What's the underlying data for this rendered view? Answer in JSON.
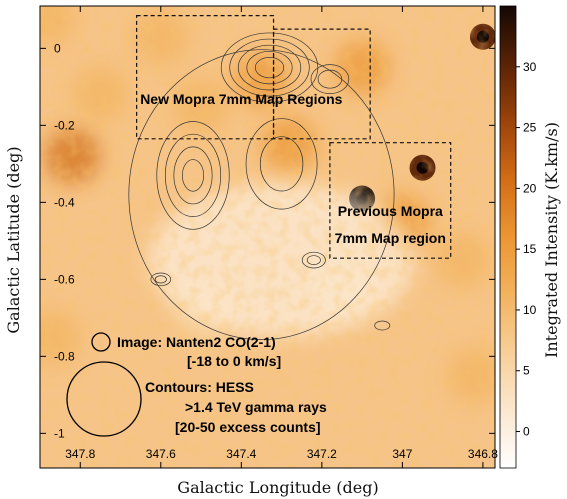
{
  "chart_data": {
    "type": "heatmap",
    "xlabel": "Galactic Longitude (deg)",
    "ylabel": "Galactic Latitude (deg)",
    "colorbar_label": "Integrated Intensity (K.km/s)",
    "xlim": [
      347.9,
      346.77
    ],
    "ylim": [
      -1.09,
      0.11
    ],
    "x_ticks": [
      347.8,
      347.6,
      347.4,
      347.2,
      347,
      346.8
    ],
    "x_tick_labels": [
      "347.8",
      "347.6",
      "347.4",
      "347.2",
      "347",
      "346.8"
    ],
    "y_ticks": [
      0,
      -0.2,
      -0.4,
      -0.6,
      -0.8,
      -1
    ],
    "y_tick_labels": [
      "0",
      "-0.2",
      "-0.4",
      "-0.6",
      "-0.8",
      "-1"
    ],
    "colorbar_range": [
      -3,
      35
    ],
    "colorbar_ticks": [
      0,
      5,
      10,
      15,
      20,
      25,
      30
    ],
    "colorbar_tick_labels": [
      "0",
      "5",
      "10",
      "15",
      "20",
      "25",
      "30"
    ],
    "colormap": [
      "#ffffff",
      "#fbe7cf",
      "#f8cf98",
      "#f3b35f",
      "#ec9632",
      "#d26d16",
      "#9c430b",
      "#5a2206",
      "#140803"
    ],
    "image_blobs": [
      {
        "l": 347.1,
        "b": -0.39,
        "value": 33
      },
      {
        "l": 346.95,
        "b": -0.31,
        "value": 31
      },
      {
        "l": 346.8,
        "b": 0.03,
        "value": 30
      },
      {
        "l": 347.82,
        "b": -0.28,
        "value": 22
      },
      {
        "l": 347.28,
        "b": -0.25,
        "value": 18
      },
      {
        "l": 347.1,
        "b": -0.05,
        "value": 16
      },
      {
        "l": 347.35,
        "b": -0.08,
        "value": 14
      },
      {
        "l": 347.6,
        "b": 0.03,
        "value": 13
      },
      {
        "l": 347.75,
        "b": -0.12,
        "value": 13
      },
      {
        "l": 347.5,
        "b": -0.15,
        "value": 12
      },
      {
        "l": 346.85,
        "b": -0.55,
        "value": 12
      },
      {
        "l": 347.0,
        "b": -0.45,
        "value": 14
      },
      {
        "l": 347.88,
        "b": 0.08,
        "value": 12
      },
      {
        "l": 347.87,
        "b": -0.75,
        "value": 11
      },
      {
        "l": 346.82,
        "b": -0.85,
        "value": 9
      },
      {
        "l": 347.15,
        "b": -0.62,
        "value": 8
      },
      {
        "l": 347.5,
        "b": -0.7,
        "value": 7
      }
    ],
    "contours": [
      {
        "l": 347.52,
        "b": -0.33,
        "levels": [
          0.05,
          0.09,
          0.13,
          0.17
        ],
        "rx": 0.09,
        "ry": 0.14
      },
      {
        "l": 347.33,
        "b": -0.05,
        "levels": [
          0.05,
          0.08,
          0.11,
          0.14,
          0.17
        ],
        "rx": 0.12,
        "ry": 0.09
      },
      {
        "l": 347.18,
        "b": -0.08,
        "levels": [
          0.05,
          0.08
        ],
        "rx": 0.1,
        "ry": 0.08
      },
      {
        "l": 347.22,
        "b": -0.55,
        "levels": [
          0.04,
          0.07
        ],
        "rx": 0.07,
        "ry": 0.05
      },
      {
        "l": 347.05,
        "b": -0.72,
        "levels": [
          0.04
        ],
        "rx": 0.08,
        "ry": 0.05
      },
      {
        "l": 347.6,
        "b": -0.6,
        "levels": [
          0.04,
          0.07
        ],
        "rx": 0.06,
        "ry": 0.04
      },
      {
        "l": 347.3,
        "b": -0.3,
        "levels": [
          0.06,
          0.1
        ],
        "rx": 0.15,
        "ry": 0.2
      },
      {
        "l": 347.35,
        "b": -0.38,
        "levels": [
          0.2
        ],
        "rx": 0.28,
        "ry": 0.32
      }
    ],
    "regions": [
      {
        "name": "new-mopra-region-west",
        "l_range": [
          347.32,
          347.66
        ],
        "b_range": [
          -0.235,
          0.085
        ]
      },
      {
        "name": "new-mopra-region-east",
        "l_range": [
          347.08,
          347.32
        ],
        "b_range": [
          -0.235,
          0.05
        ]
      },
      {
        "name": "previous-mopra-region",
        "l_range": [
          346.88,
          347.18
        ],
        "b_range": [
          -0.545,
          -0.245
        ]
      }
    ],
    "annotations": [
      {
        "text": "New Mopra 7mm Map Regions",
        "l": 347.4,
        "b": -0.145
      },
      {
        "text": "Previous Mopra",
        "l": 347.03,
        "b": -0.435
      },
      {
        "text": "7mm Map region",
        "l": 347.03,
        "b": -0.505
      }
    ],
    "legend": {
      "image_label": "Image: Nanten2 CO(2-1)",
      "image_range": "[-18 to 0 km/s]",
      "contour_label": "Contours: HESS",
      "contour_line2": ">1.4 TeV gamma rays",
      "contour_line3": "[20-50 excess counts]"
    }
  }
}
